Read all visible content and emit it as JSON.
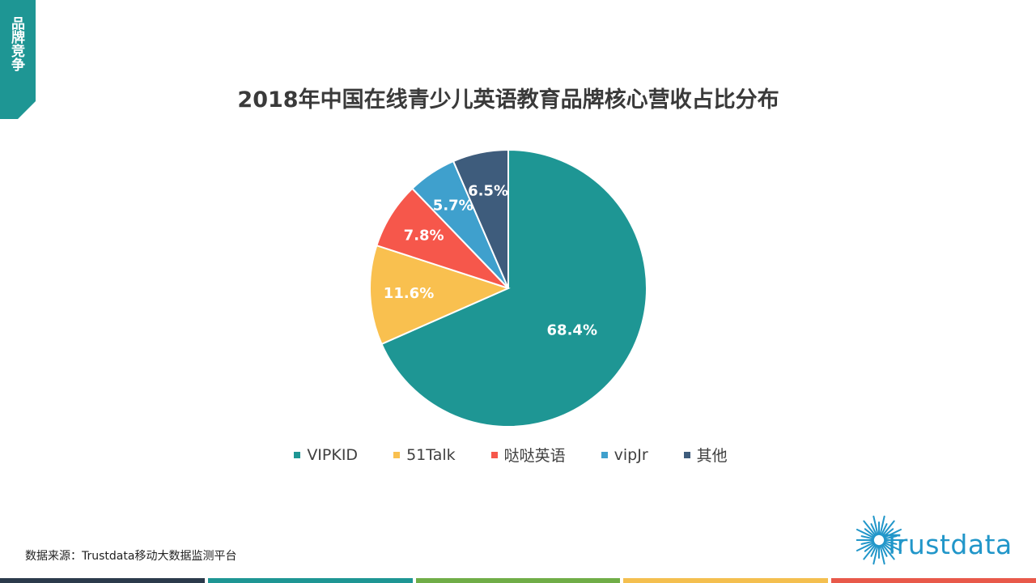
{
  "section_tab": {
    "label": "品牌竞争",
    "color": "#1e9694"
  },
  "source": "数据来源：Trustdata移动大数据监测平台",
  "logo": {
    "text": "Trustdata",
    "icon": "sunburst-icon",
    "color": "#2196c9"
  },
  "footer_colors": [
    "#2b3a4b",
    "#1e9694",
    "#70ad47",
    "#f4bf4f",
    "#e8594a"
  ],
  "chart_data": {
    "type": "pie",
    "title": "2018年中国在线青少儿英语教育品牌核心营收占比分布",
    "labels": [
      "VIPKID",
      "51Talk",
      "哒哒英语",
      "vipJr",
      "其他"
    ],
    "values": [
      68.4,
      11.6,
      7.8,
      5.7,
      6.5
    ],
    "value_labels": [
      "68.4%",
      "11.6%",
      "7.8%",
      "5.7%",
      "6.5%"
    ],
    "colors": [
      "#1e9694",
      "#f9c04f",
      "#f6574b",
      "#3fa0cd",
      "#3e5c7c"
    ],
    "legend_position": "bottom"
  }
}
